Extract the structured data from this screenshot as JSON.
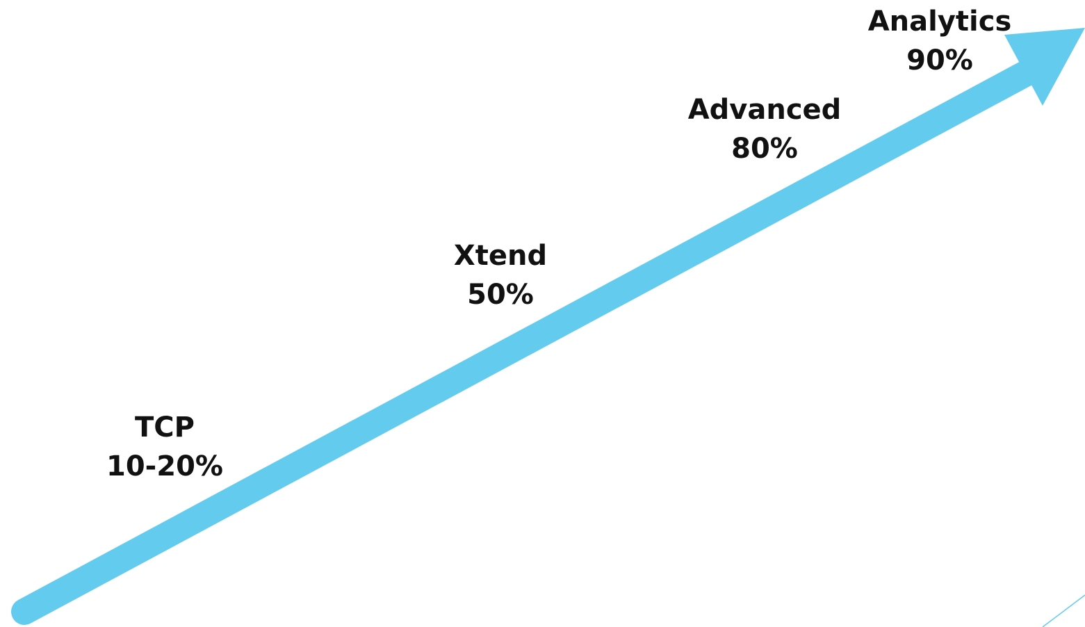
{
  "diagram": {
    "arrow_color": "#63CBEE",
    "accent_line_color": "#63CBEE",
    "stages": [
      {
        "name": "TCP",
        "value": "10-20%"
      },
      {
        "name": "Xtend",
        "value": "50%"
      },
      {
        "name": "Advanced",
        "value": "80%"
      },
      {
        "name": "Analytics",
        "value": "90%"
      }
    ]
  }
}
